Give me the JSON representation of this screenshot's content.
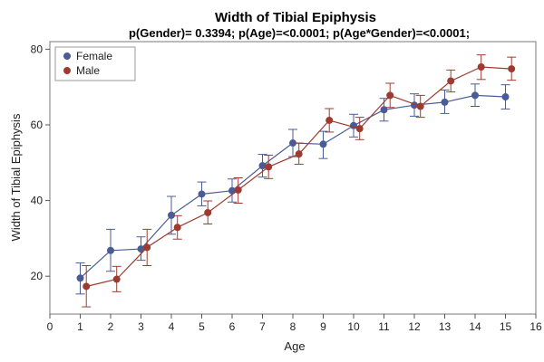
{
  "chart_data": {
    "type": "line",
    "title": "Width of Tibial Epiphysis",
    "subtitle": "p(Gender)= 0.3394; p(Age)=<0.0001; p(Age*Gender)=<0.0001;",
    "xlabel": "Age",
    "ylabel": "Width of Tibial Epiphysis",
    "xlim": [
      0,
      16
    ],
    "ylim": [
      10,
      82
    ],
    "x_ticks": [
      0,
      1,
      2,
      3,
      4,
      5,
      6,
      7,
      8,
      9,
      10,
      11,
      12,
      13,
      14,
      15,
      16
    ],
    "y_ticks": [
      20,
      40,
      60,
      80
    ],
    "grid": false,
    "legend_position": "top-left",
    "error_bars": true,
    "series": [
      {
        "name": "Female",
        "color": "#4a5c96",
        "x": [
          1,
          2,
          3,
          4,
          5,
          6,
          7,
          8,
          9,
          10,
          11,
          12,
          13,
          14,
          15
        ],
        "values": [
          19.5,
          26.8,
          27.2,
          36.1,
          41.7,
          42.6,
          49.2,
          55.2,
          54.9,
          59.8,
          64.0,
          65.2,
          66.0,
          67.8,
          67.4
        ],
        "lower": [
          15.3,
          21.3,
          24.2,
          31.1,
          38.6,
          39.6,
          46.2,
          51.6,
          51.1,
          56.8,
          61.0,
          62.3,
          63.0,
          64.9,
          64.2
        ],
        "upper": [
          23.5,
          32.4,
          30.4,
          41.1,
          44.9,
          45.7,
          52.2,
          58.8,
          58.3,
          62.8,
          67.0,
          68.2,
          69.2,
          70.8,
          70.6
        ]
      },
      {
        "name": "Male",
        "color": "#9e3b30",
        "x": [
          1,
          2,
          3,
          4,
          5,
          6,
          7,
          8,
          9,
          10,
          11,
          12,
          13,
          14,
          15
        ],
        "values": [
          17.3,
          19.2,
          27.6,
          32.9,
          36.8,
          42.8,
          48.9,
          52.3,
          61.2,
          59.0,
          67.8,
          64.9,
          71.6,
          75.3,
          74.8
        ],
        "lower": [
          11.9,
          15.9,
          22.8,
          29.8,
          33.8,
          39.3,
          45.8,
          49.6,
          58.1,
          56.1,
          64.6,
          62.0,
          68.7,
          72.0,
          71.8
        ],
        "upper": [
          22.8,
          22.6,
          32.4,
          36.0,
          39.9,
          46.0,
          52.0,
          55.2,
          64.3,
          62.0,
          71.0,
          67.8,
          74.5,
          78.5,
          77.9
        ]
      }
    ]
  }
}
